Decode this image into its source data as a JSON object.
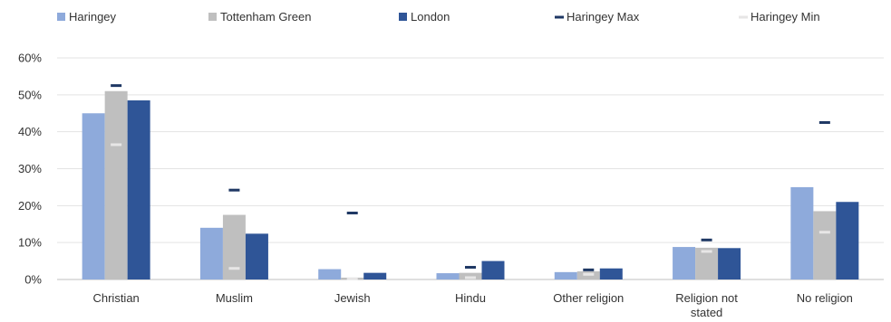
{
  "chart_data": {
    "type": "bar",
    "categories": [
      "Christian",
      "Muslim",
      "Jewish",
      "Hindu",
      "Other religion",
      "Religion not stated",
      "No religion"
    ],
    "category_label_lines": [
      [
        "Christian"
      ],
      [
        "Muslim"
      ],
      [
        "Jewish"
      ],
      [
        "Hindu"
      ],
      [
        "Other religion"
      ],
      [
        "Religion not",
        "stated"
      ],
      [
        "No religion"
      ]
    ],
    "series": [
      {
        "name": "Haringey",
        "color": "#8eaadb",
        "values": [
          45,
          14,
          2.8,
          1.7,
          2,
          8.8,
          25
        ]
      },
      {
        "name": "Tottenham Green",
        "color": "#bfbfbf",
        "values": [
          51,
          17.5,
          0.5,
          1.8,
          2.2,
          8.6,
          18.5
        ]
      },
      {
        "name": "London",
        "color": "#2f5597",
        "values": [
          48.5,
          12.4,
          1.8,
          5,
          3,
          8.5,
          21
        ]
      }
    ],
    "markers": [
      {
        "name": "Haringey Max",
        "color": "#1f3864",
        "values": [
          52.5,
          24.2,
          18,
          3.3,
          2.6,
          10.7,
          42.5
        ]
      },
      {
        "name": "Haringey Min",
        "color": "#e7e6e6",
        "values": [
          36.5,
          3,
          0.2,
          0.5,
          1.4,
          7.6,
          12.8
        ]
      }
    ],
    "y_ticks": [
      "0%",
      "10%",
      "20%",
      "30%",
      "40%",
      "50%",
      "60%"
    ],
    "ylim": [
      0,
      60
    ],
    "title": "",
    "xlabel": "",
    "ylabel": "",
    "grid": true,
    "legend_position": "top"
  }
}
